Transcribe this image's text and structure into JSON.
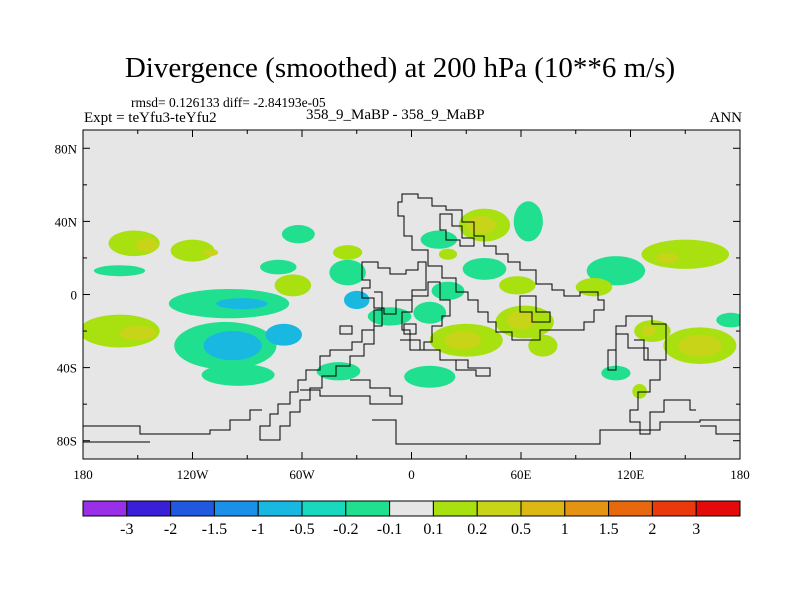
{
  "chart_data": {
    "type": "heatmap",
    "title": "Divergence (smoothed) at 200 hPa (10**6 m/s)",
    "stats_text": "rmsd= 0.126133 diff= -2.84193e-05",
    "experiment_text": "Expt = teYfu3-teYfu2",
    "subtitle": "358_9_MaBP - 358_9_MaBP",
    "season": "ANN",
    "xlim": [
      -180,
      180
    ],
    "ylim": [
      -90,
      90
    ],
    "x_ticks": [
      {
        "value": -180,
        "label": "180"
      },
      {
        "value": -120,
        "label": "120W"
      },
      {
        "value": -60,
        "label": "60W"
      },
      {
        "value": 0,
        "label": "0"
      },
      {
        "value": 60,
        "label": "60E"
      },
      {
        "value": 120,
        "label": "120E"
      },
      {
        "value": 180,
        "label": "180"
      }
    ],
    "y_ticks": [
      {
        "value": 80,
        "label": "80N"
      },
      {
        "value": 40,
        "label": "40N"
      },
      {
        "value": 0,
        "label": "0"
      },
      {
        "value": -40,
        "label": "40S"
      },
      {
        "value": -80,
        "label": "80S"
      }
    ],
    "colorbar": {
      "colors": [
        "#9a2fe8",
        "#3a1fd8",
        "#2058e0",
        "#1a90e8",
        "#19b8e0",
        "#18d8c0",
        "#20e090",
        "#e6e6e6",
        "#a8e010",
        "#c8d418",
        "#dcb814",
        "#e49410",
        "#e8680e",
        "#ea3a0c",
        "#e40a0a"
      ],
      "labels": [
        "-3",
        "-2",
        "-1.5",
        "-1",
        "-0.5",
        "-0.2",
        "-0.1",
        "0.1",
        "0.2",
        "0.5",
        "1",
        "1.5",
        "2",
        "3"
      ]
    },
    "regions": [
      {
        "lon": -152,
        "lat": 28,
        "rx": 14,
        "ry": 7,
        "level": "pos-weak"
      },
      {
        "lon": -145,
        "lat": 27,
        "rx": 6,
        "ry": 4,
        "level": "pos-mid"
      },
      {
        "lon": -120,
        "lat": 24,
        "rx": 12,
        "ry": 6,
        "level": "pos-weak"
      },
      {
        "lon": -110,
        "lat": 23,
        "rx": 4,
        "ry": 2,
        "level": "pos-mid"
      },
      {
        "lon": -62,
        "lat": 33,
        "rx": 9,
        "ry": 5,
        "level": "neg-weak"
      },
      {
        "lon": -73,
        "lat": 15,
        "rx": 10,
        "ry": 4,
        "level": "neg-weak"
      },
      {
        "lon": -160,
        "lat": 13,
        "rx": 14,
        "ry": 3,
        "level": "neg-weak"
      },
      {
        "lon": -65,
        "lat": 5,
        "rx": 10,
        "ry": 6,
        "level": "pos-weak"
      },
      {
        "lon": -35,
        "lat": 23,
        "rx": 8,
        "ry": 4,
        "level": "pos-weak"
      },
      {
        "lon": -160,
        "lat": -20,
        "rx": 22,
        "ry": 9,
        "level": "pos-weak"
      },
      {
        "lon": -150,
        "lat": -21,
        "rx": 10,
        "ry": 4,
        "level": "pos-mid"
      },
      {
        "lon": -100,
        "lat": -5,
        "rx": 33,
        "ry": 8,
        "level": "neg-weak"
      },
      {
        "lon": -93,
        "lat": -5,
        "rx": 14,
        "ry": 3,
        "level": "neg-mid"
      },
      {
        "lon": -102,
        "lat": -28,
        "rx": 28,
        "ry": 13,
        "level": "neg-weak"
      },
      {
        "lon": -98,
        "lat": -28,
        "rx": 16,
        "ry": 8,
        "level": "neg-mid"
      },
      {
        "lon": -95,
        "lat": -44,
        "rx": 20,
        "ry": 6,
        "level": "neg-weak"
      },
      {
        "lon": -70,
        "lat": -22,
        "rx": 10,
        "ry": 6,
        "level": "neg-mid"
      },
      {
        "lon": -35,
        "lat": 12,
        "rx": 10,
        "ry": 7,
        "level": "neg-weak"
      },
      {
        "lon": -30,
        "lat": -3,
        "rx": 7,
        "ry": 5,
        "level": "neg-mid"
      },
      {
        "lon": -12,
        "lat": -12,
        "rx": 12,
        "ry": 5,
        "level": "neg-weak"
      },
      {
        "lon": -40,
        "lat": -42,
        "rx": 12,
        "ry": 5,
        "level": "neg-weak"
      },
      {
        "lon": 10,
        "lat": -45,
        "rx": 14,
        "ry": 6,
        "level": "neg-weak"
      },
      {
        "lon": 15,
        "lat": 30,
        "rx": 10,
        "ry": 5,
        "level": "neg-weak"
      },
      {
        "lon": 40,
        "lat": 38,
        "rx": 14,
        "ry": 9,
        "level": "pos-weak"
      },
      {
        "lon": 38,
        "lat": 38,
        "rx": 8,
        "ry": 5,
        "level": "pos-mid"
      },
      {
        "lon": 20,
        "lat": 22,
        "rx": 5,
        "ry": 3,
        "level": "pos-weak"
      },
      {
        "lon": 64,
        "lat": 40,
        "rx": 8,
        "ry": 11,
        "level": "neg-weak"
      },
      {
        "lon": 40,
        "lat": 14,
        "rx": 12,
        "ry": 6,
        "level": "neg-weak"
      },
      {
        "lon": 20,
        "lat": 2,
        "rx": 9,
        "ry": 5,
        "level": "neg-weak"
      },
      {
        "lon": 58,
        "lat": 5,
        "rx": 10,
        "ry": 5,
        "level": "pos-weak"
      },
      {
        "lon": 112,
        "lat": 13,
        "rx": 16,
        "ry": 8,
        "level": "neg-weak"
      },
      {
        "lon": 150,
        "lat": 22,
        "rx": 24,
        "ry": 8,
        "level": "pos-weak"
      },
      {
        "lon": 140,
        "lat": 20,
        "rx": 6,
        "ry": 3,
        "level": "pos-mid"
      },
      {
        "lon": 100,
        "lat": 4,
        "rx": 10,
        "ry": 5,
        "level": "pos-weak"
      },
      {
        "lon": 10,
        "lat": -10,
        "rx": 9,
        "ry": 6,
        "level": "neg-weak"
      },
      {
        "lon": 30,
        "lat": -25,
        "rx": 20,
        "ry": 9,
        "level": "pos-weak"
      },
      {
        "lon": 28,
        "lat": -25,
        "rx": 10,
        "ry": 5,
        "level": "pos-mid"
      },
      {
        "lon": 62,
        "lat": -15,
        "rx": 16,
        "ry": 9,
        "level": "pos-weak"
      },
      {
        "lon": 60,
        "lat": -14,
        "rx": 8,
        "ry": 5,
        "level": "pos-mid"
      },
      {
        "lon": 72,
        "lat": -28,
        "rx": 8,
        "ry": 6,
        "level": "pos-weak"
      },
      {
        "lon": 132,
        "lat": -20,
        "rx": 10,
        "ry": 6,
        "level": "pos-weak"
      },
      {
        "lon": 130,
        "lat": -20,
        "rx": 4,
        "ry": 3,
        "level": "pos-mid"
      },
      {
        "lon": 158,
        "lat": -28,
        "rx": 20,
        "ry": 10,
        "level": "pos-weak"
      },
      {
        "lon": 158,
        "lat": -28,
        "rx": 12,
        "ry": 6,
        "level": "pos-mid"
      },
      {
        "lon": 175,
        "lat": -14,
        "rx": 8,
        "ry": 4,
        "level": "neg-weak"
      },
      {
        "lon": 125,
        "lat": -53,
        "rx": 4,
        "ry": 4,
        "level": "pos-weak"
      },
      {
        "lon": 112,
        "lat": -43,
        "rx": 8,
        "ry": 4,
        "level": "neg-weak"
      }
    ]
  }
}
